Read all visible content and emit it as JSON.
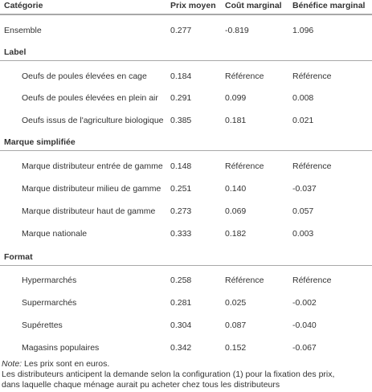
{
  "header": {
    "col0": "Catégorie",
    "col1": "Prix moyen",
    "col2": "Coût marginal",
    "col3": "Bénéfice marginal"
  },
  "rows": [
    {
      "cat": "Ensemble",
      "prix": "0.277",
      "cout": "-0.819",
      "benef": "1.096"
    }
  ],
  "sections": [
    {
      "title": "Label",
      "rows": [
        {
          "cat": "Oeufs de poules élevées en cage",
          "prix": "0.184",
          "cout": "Référence",
          "benef": "Référence"
        },
        {
          "cat": "Oeufs de poules élevées en plein air",
          "prix": "0.291",
          "cout": "0.099",
          "benef": "0.008"
        },
        {
          "cat": "Oeufs issus de l'agriculture biologique",
          "prix": "0.385",
          "cout": "0.181",
          "benef": "0.021"
        }
      ]
    },
    {
      "title": "Marque simplifiée",
      "rows": [
        {
          "cat": "Marque distributeur entrée de gamme",
          "prix": "0.148",
          "cout": "Référence",
          "benef": "Référence"
        },
        {
          "cat": "Marque distributeur milieu de gamme",
          "prix": "0.251",
          "cout": "0.140",
          "benef": "-0.037"
        },
        {
          "cat": "Marque distributeur haut de gamme",
          "prix": "0.273",
          "cout": "0.069",
          "benef": "0.057"
        },
        {
          "cat": "Marque nationale",
          "prix": "0.333",
          "cout": "0.182",
          "benef": "0.003"
        }
      ]
    },
    {
      "title": "Format",
      "rows": [
        {
          "cat": "Hypermarchés",
          "prix": "0.258",
          "cout": "Référence",
          "benef": "Référence"
        },
        {
          "cat": "Supermarchés",
          "prix": "0.281",
          "cout": "0.025",
          "benef": "-0.002"
        },
        {
          "cat": "Supérettes",
          "prix": "0.304",
          "cout": "0.087",
          "benef": "-0.040"
        },
        {
          "cat": "Magasins populaires",
          "prix": "0.342",
          "cout": "0.152",
          "benef": "-0.067"
        }
      ]
    }
  ],
  "note": {
    "label": "Note:",
    "line1": " Les prix sont en euros.",
    "line2": "Les distributeurs anticipent la demande selon la configuration (1) pour la fixation des prix,",
    "line3": "dans laquelle chaque ménage aurait pu acheter chez tous les distributeurs"
  }
}
